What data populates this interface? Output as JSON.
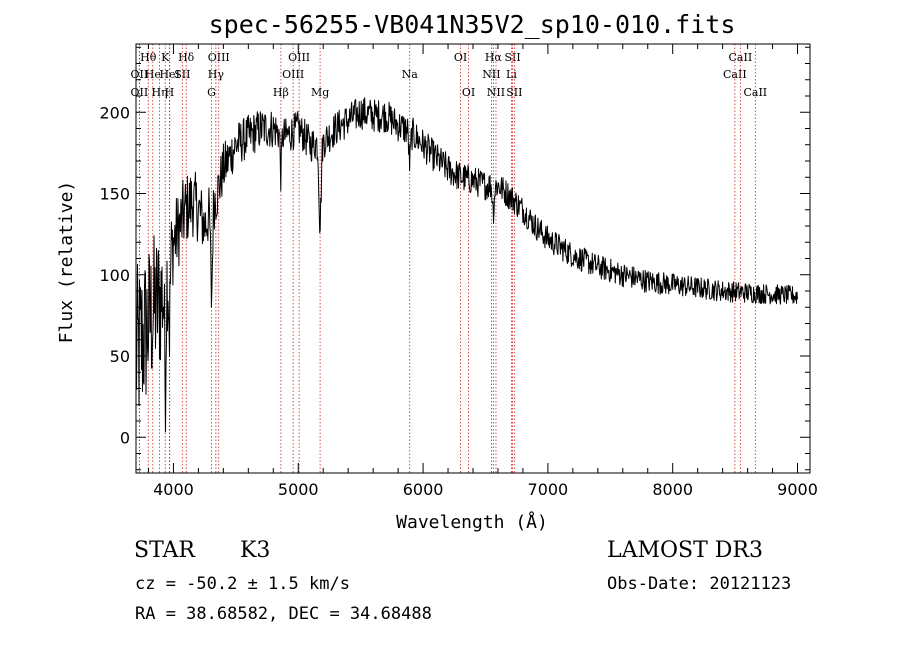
{
  "chart_data": {
    "type": "line",
    "title": "spec-56255-VB041N35V2_sp10-010.fits",
    "xlabel": "Wavelength (Å)",
    "ylabel": "Flux (relative)",
    "xlim": [
      3700,
      9100
    ],
    "ylim": [
      -22,
      242
    ],
    "xticks": [
      4000,
      5000,
      6000,
      7000,
      8000,
      9000
    ],
    "yticks": [
      0,
      50,
      100,
      150,
      200
    ],
    "line_color": "#000000",
    "marker_color": "#cc2222",
    "spectrum_anchors": {
      "x": [
        3700,
        3750,
        3800,
        3850,
        3900,
        3950,
        4000,
        4050,
        4100,
        4150,
        4200,
        4250,
        4300,
        4350,
        4400,
        4500,
        4600,
        4700,
        4800,
        4900,
        5000,
        5100,
        5200,
        5300,
        5400,
        5500,
        5600,
        5700,
        5800,
        5900,
        6000,
        6100,
        6200,
        6300,
        6400,
        6500,
        6600,
        6700,
        6800,
        6900,
        7000,
        7200,
        7400,
        7600,
        7800,
        8000,
        8200,
        8400,
        8600,
        8800,
        9000
      ],
      "y": [
        50,
        60,
        70,
        80,
        85,
        100,
        120,
        130,
        140,
        145,
        140,
        130,
        140,
        150,
        165,
        180,
        185,
        190,
        190,
        185,
        190,
        180,
        182,
        190,
        195,
        200,
        198,
        198,
        192,
        188,
        180,
        172,
        165,
        160,
        158,
        155,
        155,
        148,
        140,
        130,
        122,
        112,
        105,
        100,
        96,
        94,
        92,
        90,
        89,
        88,
        87
      ]
    },
    "noise_profile": {
      "x": [
        3700,
        3800,
        3900,
        4000,
        4300,
        4500,
        5000,
        6000,
        6500,
        7000,
        8000,
        9000
      ],
      "amplitude": [
        55,
        50,
        45,
        25,
        18,
        14,
        11,
        10,
        9,
        8,
        7,
        6
      ]
    },
    "absorption_features": [
      {
        "x": 3934,
        "depth": 60,
        "width": 8
      },
      {
        "x": 3968,
        "depth": 40,
        "width": 8
      },
      {
        "x": 4305,
        "depth": 55,
        "width": 10
      },
      {
        "x": 4861,
        "depth": 25,
        "width": 8
      },
      {
        "x": 5175,
        "depth": 50,
        "width": 12
      },
      {
        "x": 5893,
        "depth": 20,
        "width": 10
      },
      {
        "x": 6563,
        "depth": 15,
        "width": 10
      }
    ],
    "line_markers": [
      {
        "label": "Hθ",
        "x": 3798,
        "row": 1
      },
      {
        "label": "OII",
        "x": 3727,
        "row": 2
      },
      {
        "label": "OII",
        "x": 3727,
        "row": 3
      },
      {
        "label": "He",
        "x": 3835,
        "row": 2
      },
      {
        "label": "Hη",
        "x": 3889,
        "row": 3
      },
      {
        "label": "K",
        "x": 3934,
        "row": 1
      },
      {
        "label": "H",
        "x": 3968,
        "row": 3
      },
      {
        "label": "HeI",
        "x": 3970,
        "row": 2
      },
      {
        "label": "SII",
        "x": 4071,
        "row": 2
      },
      {
        "label": "Hδ",
        "x": 4102,
        "row": 1
      },
      {
        "label": "OIII",
        "x": 4363,
        "row": 1
      },
      {
        "label": "Hγ",
        "x": 4340,
        "row": 2
      },
      {
        "label": "G",
        "x": 4305,
        "row": 3
      },
      {
        "label": "Hβ",
        "x": 4861,
        "row": 3
      },
      {
        "label": "OIII",
        "x": 5007,
        "row": 1
      },
      {
        "label": "OIII",
        "x": 4959,
        "row": 2
      },
      {
        "label": "Mg",
        "x": 5175,
        "row": 3
      },
      {
        "label": "Na",
        "x": 5893,
        "row": 2
      },
      {
        "label": "OI",
        "x": 6300,
        "row": 1
      },
      {
        "label": "OI",
        "x": 6364,
        "row": 3
      },
      {
        "label": "Hα",
        "x": 6563,
        "row": 1
      },
      {
        "label": "NII",
        "x": 6548,
        "row": 2
      },
      {
        "label": "NII",
        "x": 6584,
        "row": 3
      },
      {
        "label": "SII",
        "x": 6717,
        "row": 1
      },
      {
        "label": "Li",
        "x": 6708,
        "row": 2
      },
      {
        "label": "SII",
        "x": 6731,
        "row": 3
      },
      {
        "label": "CaII",
        "x": 8498,
        "row": 2
      },
      {
        "label": "CaII",
        "x": 8542,
        "row": 1
      },
      {
        "label": "CaII",
        "x": 8662,
        "row": 3
      }
    ]
  },
  "info": {
    "object_class": "STAR",
    "subclass": "K3",
    "survey": "LAMOST DR3",
    "redshift": "cz = -50.2 ± 1.5 km/s",
    "obs_date": "Obs-Date: 20121123",
    "coords": "RA =  38.68582, DEC =  34.68488"
  }
}
